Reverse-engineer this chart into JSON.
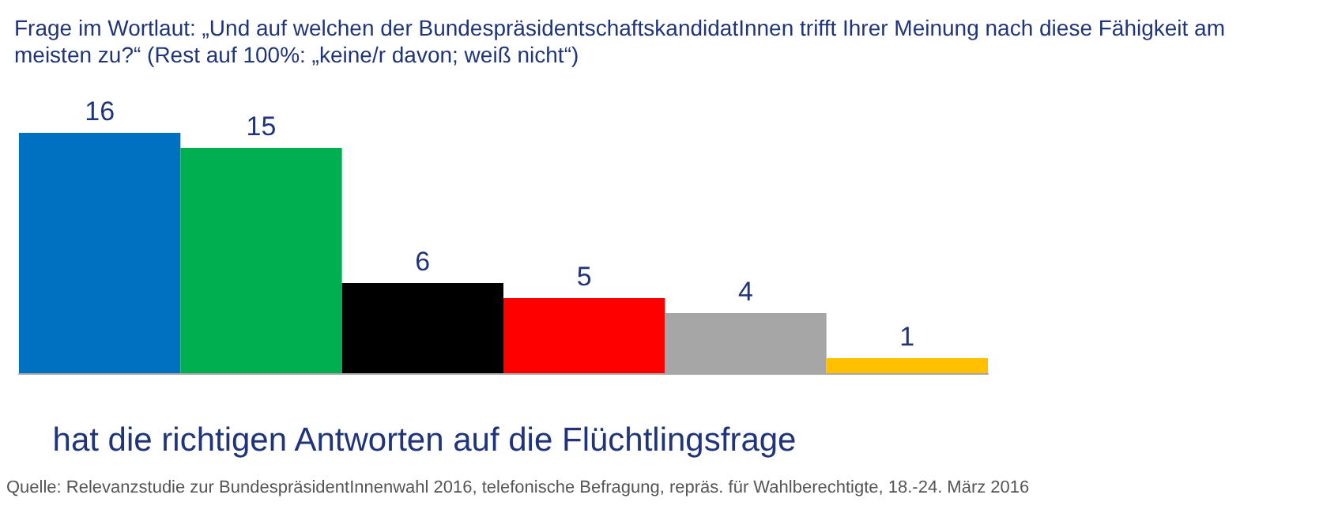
{
  "chart_data": {
    "type": "bar",
    "title": "Frage im Wortlaut: „Und auf welchen der BundespräsidentschaftskandidatInnen trifft Ihrer Meinung nach diese Fähigkeit am meisten zu?“ (Rest auf 100%: „keine/r davon; weiß nicht“)",
    "xlabel": "hat die richtigen Antworten auf die Flüchtlingsfrage",
    "categories": [
      null,
      null,
      null,
      null,
      null,
      null
    ],
    "values": [
      16,
      15,
      6,
      5,
      4,
      1
    ],
    "colors": [
      "#0070c0",
      "#00b050",
      "#000000",
      "#ff0000",
      "#a6a6a6",
      "#ffc000"
    ],
    "data_labels": true,
    "annotations": [
      "Quelle: Relevanzstudie zur BundespräsidentInnenwahl 2016, telefonische Befragung, repräs. für Wahlberechtigte, 18.-24. März 2016"
    ]
  }
}
